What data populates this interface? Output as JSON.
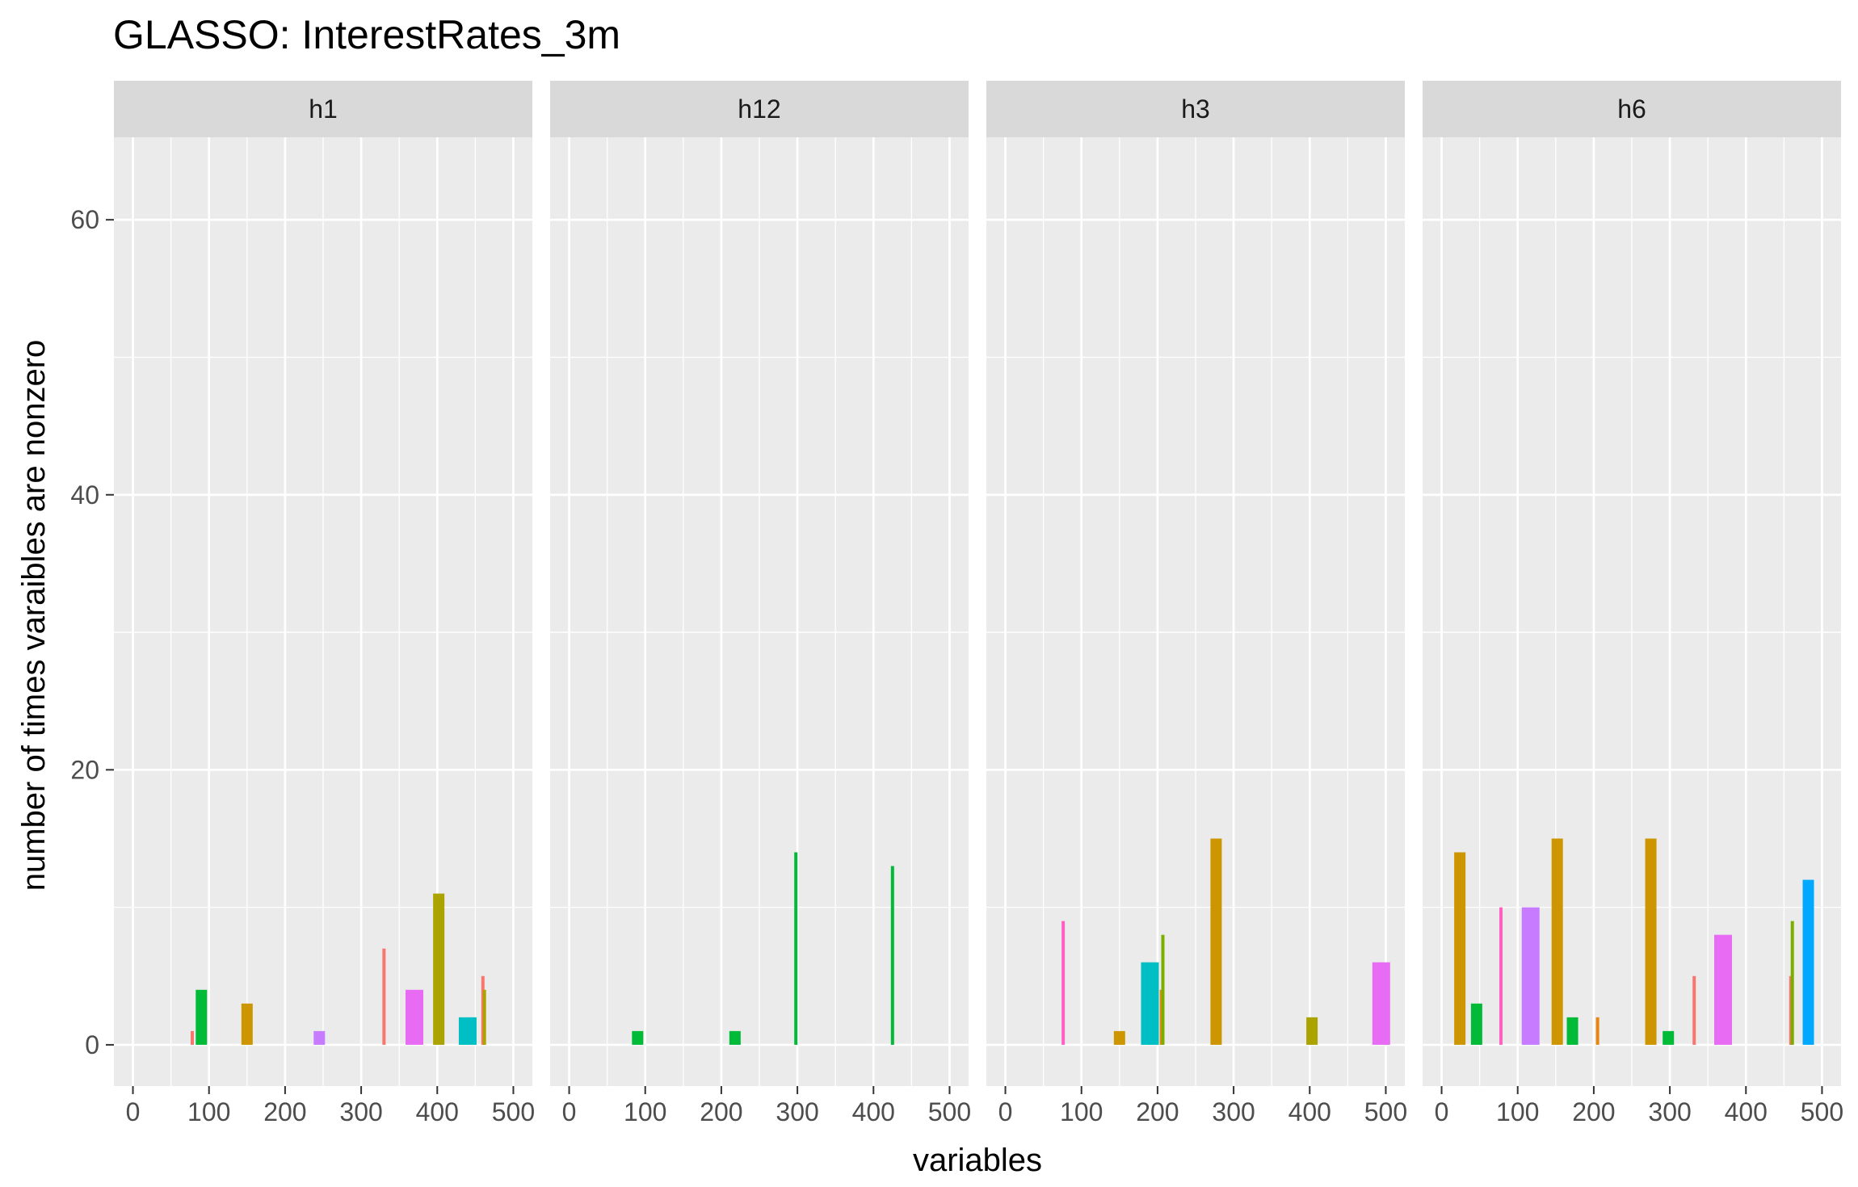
{
  "chart_data": {
    "type": "bar",
    "title": "GLASSO: InterestRates_3m",
    "xlabel": "variables",
    "ylabel": "number of times varaibles are nonzero",
    "xlim": [
      -25,
      525
    ],
    "ylim": [
      -3,
      66
    ],
    "x_ticks": [
      0,
      100,
      200,
      300,
      400,
      500
    ],
    "y_ticks": [
      0,
      20,
      40,
      60
    ],
    "grid": true,
    "legend": "none",
    "panels": [
      {
        "label": "h1",
        "bars": [
          {
            "x": 78,
            "value": 1,
            "color": "#F8766D"
          },
          {
            "x": 90,
            "value": 4,
            "color": "#00BA38"
          },
          {
            "x": 150,
            "value": 3,
            "color": "#CD9600"
          },
          {
            "x": 245,
            "value": 1,
            "color": "#C77CFF"
          },
          {
            "x": 330,
            "value": 7,
            "color": "#F8766D"
          },
          {
            "x": 370,
            "value": 4,
            "color": "#E76BF3"
          },
          {
            "x": 402,
            "value": 11,
            "color": "#ABA300"
          },
          {
            "x": 440,
            "value": 2,
            "color": "#00BFC4"
          },
          {
            "x": 460,
            "value": 5,
            "color": "#F8766D"
          },
          {
            "x": 462,
            "value": 4,
            "color": "#ABA300"
          }
        ]
      },
      {
        "label": "h12",
        "bars": [
          {
            "x": 90,
            "value": 1,
            "color": "#00BA38"
          },
          {
            "x": 218,
            "value": 1,
            "color": "#00BA38"
          },
          {
            "x": 298,
            "value": 14,
            "color": "#00BA38"
          },
          {
            "x": 425,
            "value": 13,
            "color": "#00BA38"
          }
        ]
      },
      {
        "label": "h3",
        "bars": [
          {
            "x": 76,
            "value": 9,
            "color": "#FF61C3"
          },
          {
            "x": 150,
            "value": 1,
            "color": "#CD9600"
          },
          {
            "x": 190,
            "value": 6,
            "color": "#00BFC4"
          },
          {
            "x": 205,
            "value": 4,
            "color": "#E68613"
          },
          {
            "x": 207,
            "value": 8,
            "color": "#7CAE00"
          },
          {
            "x": 277,
            "value": 15,
            "color": "#CD9600"
          },
          {
            "x": 403,
            "value": 2,
            "color": "#ABA300"
          },
          {
            "x": 494,
            "value": 6,
            "color": "#E76BF3"
          }
        ]
      },
      {
        "label": "h6",
        "bars": [
          {
            "x": 24,
            "value": 14,
            "color": "#CD9600"
          },
          {
            "x": 46,
            "value": 3,
            "color": "#00BA38"
          },
          {
            "x": 78,
            "value": 10,
            "color": "#FF61C3"
          },
          {
            "x": 117,
            "value": 10,
            "color": "#C77CFF"
          },
          {
            "x": 152,
            "value": 15,
            "color": "#CD9600"
          },
          {
            "x": 172,
            "value": 2,
            "color": "#00BA38"
          },
          {
            "x": 205,
            "value": 2,
            "color": "#E68613"
          },
          {
            "x": 275,
            "value": 15,
            "color": "#CD9600"
          },
          {
            "x": 298,
            "value": 1,
            "color": "#00BA38"
          },
          {
            "x": 332,
            "value": 5,
            "color": "#F8766D"
          },
          {
            "x": 370,
            "value": 8,
            "color": "#E76BF3"
          },
          {
            "x": 459,
            "value": 5,
            "color": "#F8766D"
          },
          {
            "x": 461,
            "value": 9,
            "color": "#7CAE00"
          },
          {
            "x": 482,
            "value": 12,
            "color": "#00A9FF"
          }
        ]
      }
    ]
  }
}
